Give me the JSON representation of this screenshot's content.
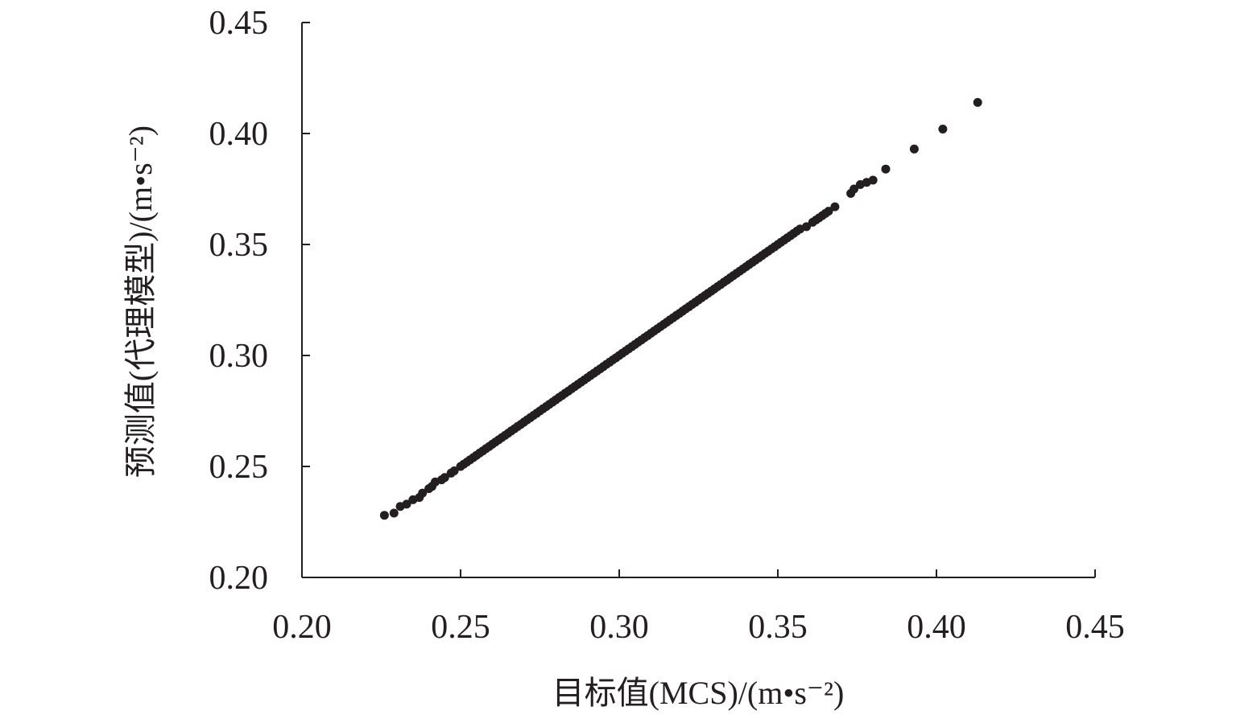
{
  "chart_data": {
    "type": "scatter",
    "title": "",
    "xlabel": "目标值(MCS)/(m•s⁻²)",
    "ylabel": "预测值(代理模型)/(m•s⁻²)",
    "xlim": [
      0.2,
      0.45
    ],
    "ylim": [
      0.2,
      0.45
    ],
    "xticks": [
      "0.20",
      "0.25",
      "0.30",
      "0.35",
      "0.40",
      "0.45"
    ],
    "yticks": [
      "0.20",
      "0.25",
      "0.30",
      "0.35",
      "0.40",
      "0.45"
    ],
    "grid": false,
    "legend": "none",
    "point_color": "#231f20",
    "series": [
      {
        "x": [
          0.226,
          0.229,
          0.231,
          0.233,
          0.235,
          0.237,
          0.238,
          0.24,
          0.241,
          0.242,
          0.244,
          0.245,
          0.247,
          0.248,
          0.25,
          0.251,
          0.252,
          0.253,
          0.254,
          0.255,
          0.256,
          0.257,
          0.258,
          0.259,
          0.26,
          0.261,
          0.262,
          0.263,
          0.264,
          0.265,
          0.266,
          0.267,
          0.268,
          0.269,
          0.27,
          0.271,
          0.272,
          0.273,
          0.274,
          0.275,
          0.276,
          0.277,
          0.278,
          0.279,
          0.28,
          0.281,
          0.282,
          0.283,
          0.284,
          0.285,
          0.286,
          0.287,
          0.288,
          0.289,
          0.29,
          0.291,
          0.292,
          0.293,
          0.294,
          0.295,
          0.296,
          0.297,
          0.298,
          0.299,
          0.3,
          0.301,
          0.302,
          0.303,
          0.304,
          0.305,
          0.306,
          0.307,
          0.308,
          0.309,
          0.31,
          0.311,
          0.312,
          0.313,
          0.314,
          0.315,
          0.316,
          0.317,
          0.318,
          0.319,
          0.32,
          0.321,
          0.322,
          0.323,
          0.324,
          0.325,
          0.326,
          0.327,
          0.328,
          0.329,
          0.33,
          0.331,
          0.332,
          0.333,
          0.334,
          0.335,
          0.336,
          0.337,
          0.338,
          0.339,
          0.34,
          0.341,
          0.342,
          0.343,
          0.344,
          0.345,
          0.346,
          0.347,
          0.348,
          0.349,
          0.35,
          0.351,
          0.352,
          0.353,
          0.354,
          0.355,
          0.356,
          0.357,
          0.359,
          0.361,
          0.362,
          0.363,
          0.364,
          0.365,
          0.366,
          0.368,
          0.373,
          0.374,
          0.376,
          0.378,
          0.38,
          0.384,
          0.393,
          0.402,
          0.413
        ],
        "y": [
          0.228,
          0.229,
          0.232,
          0.233,
          0.235,
          0.236,
          0.238,
          0.24,
          0.241,
          0.243,
          0.244,
          0.245,
          0.247,
          0.248,
          0.25,
          0.251,
          0.252,
          0.253,
          0.254,
          0.255,
          0.256,
          0.257,
          0.258,
          0.259,
          0.26,
          0.261,
          0.262,
          0.263,
          0.264,
          0.265,
          0.266,
          0.267,
          0.268,
          0.269,
          0.27,
          0.271,
          0.272,
          0.273,
          0.274,
          0.275,
          0.276,
          0.277,
          0.278,
          0.279,
          0.28,
          0.281,
          0.282,
          0.283,
          0.284,
          0.285,
          0.286,
          0.287,
          0.288,
          0.289,
          0.29,
          0.291,
          0.292,
          0.293,
          0.294,
          0.295,
          0.296,
          0.297,
          0.298,
          0.299,
          0.3,
          0.301,
          0.302,
          0.303,
          0.304,
          0.305,
          0.306,
          0.307,
          0.308,
          0.309,
          0.31,
          0.311,
          0.312,
          0.313,
          0.314,
          0.315,
          0.316,
          0.317,
          0.318,
          0.319,
          0.32,
          0.321,
          0.322,
          0.323,
          0.324,
          0.325,
          0.326,
          0.327,
          0.328,
          0.329,
          0.33,
          0.331,
          0.332,
          0.333,
          0.334,
          0.335,
          0.336,
          0.337,
          0.338,
          0.339,
          0.34,
          0.341,
          0.342,
          0.343,
          0.344,
          0.345,
          0.346,
          0.347,
          0.348,
          0.349,
          0.35,
          0.351,
          0.352,
          0.353,
          0.354,
          0.355,
          0.356,
          0.357,
          0.358,
          0.36,
          0.361,
          0.362,
          0.363,
          0.364,
          0.365,
          0.367,
          0.373,
          0.375,
          0.377,
          0.378,
          0.379,
          0.384,
          0.393,
          0.402,
          0.414
        ]
      }
    ]
  }
}
